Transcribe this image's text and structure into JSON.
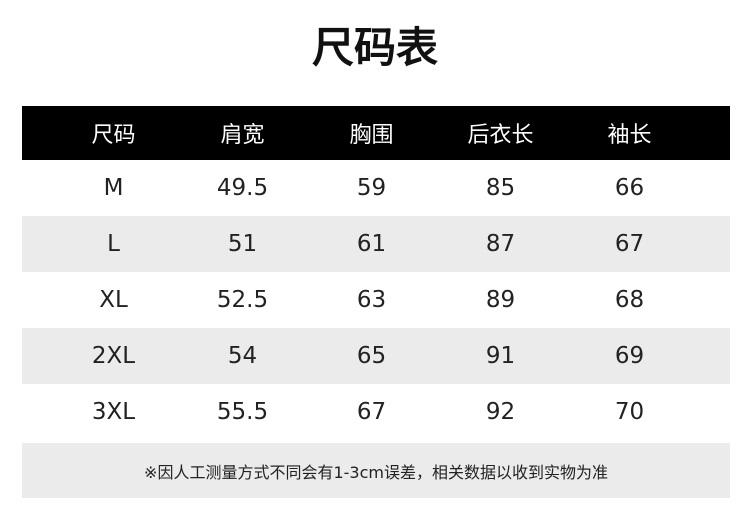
{
  "title": "尺码表",
  "headers": [
    "尺码",
    "肩宽",
    "胸围",
    "后衣长",
    "袖长"
  ],
  "rows": [
    [
      "M",
      "49.5",
      "59",
      "85",
      "66"
    ],
    [
      "L",
      "51",
      "61",
      "87",
      "67"
    ],
    [
      "XL",
      "52.5",
      "63",
      "89",
      "68"
    ],
    [
      "2XL",
      "54",
      "65",
      "91",
      "69"
    ],
    [
      "3XL",
      "55.5",
      "67",
      "92",
      "70"
    ]
  ],
  "note": "※因人工测量方式不同会有1-3cm误差，相关数据以收到实物为准",
  "colors": {
    "header_bg": "#000000",
    "stripe": "#ebebeb"
  }
}
